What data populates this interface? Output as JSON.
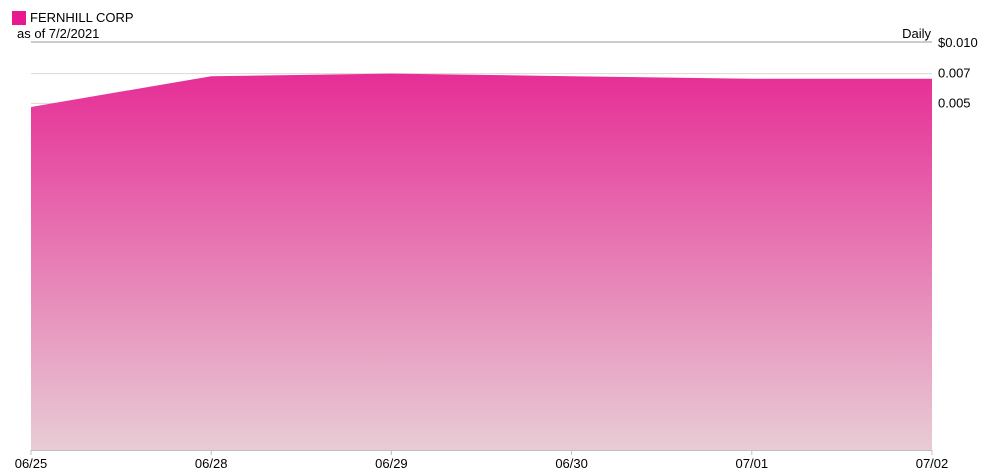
{
  "header": {
    "title": "FERNHILL CORP",
    "as_of": "as of 7/2/2021",
    "period": "Daily"
  },
  "colors": {
    "series": "#e8198f",
    "area_top": "#e62e96",
    "area_bottom": "#e8ccd4",
    "grid": "#d9d9d9",
    "axis": "#bfbfbf"
  },
  "chart_data": {
    "type": "area",
    "categories": [
      "06/25",
      "06/28",
      "06/29",
      "06/30",
      "07/01",
      "07/02"
    ],
    "series": [
      {
        "name": "FERNHILL CORP",
        "values": [
          0.0048,
          0.0068,
          0.007,
          0.0068,
          0.0066,
          0.0066
        ]
      }
    ],
    "y_ticks": [
      {
        "value": 0.01,
        "label": "$0.010"
      },
      {
        "value": 0.007,
        "label": "0.007"
      },
      {
        "value": 0.005,
        "label": "0.005"
      }
    ],
    "ylim": [
      0.0001,
      0.01
    ],
    "y_scale": "log",
    "grid": true,
    "legend": "top-left"
  }
}
